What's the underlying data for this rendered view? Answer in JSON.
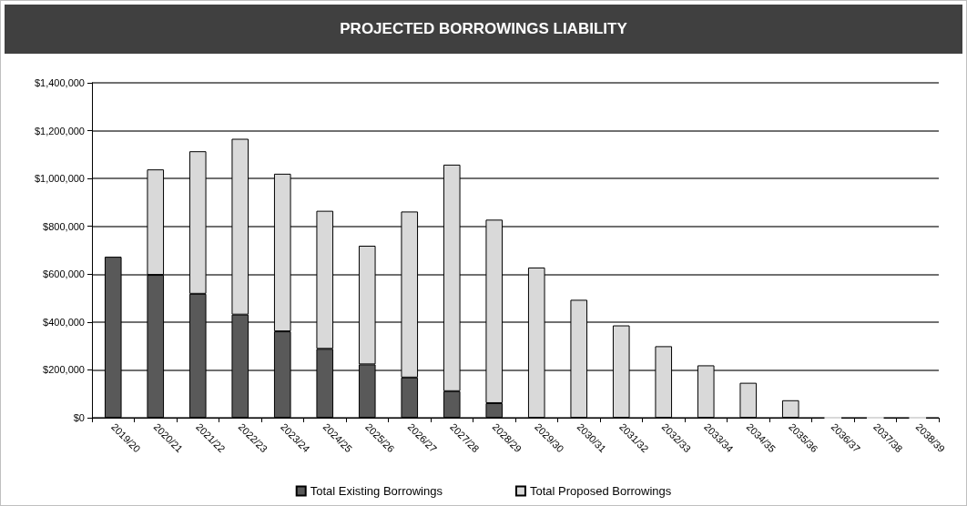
{
  "chart_data": {
    "type": "bar",
    "title": "PROJECTED BORROWINGS LIABILITY",
    "stacked": true,
    "categories": [
      "2019/20",
      "2020/21",
      "2021/22",
      "2022/23",
      "2023/24",
      "2024/25",
      "2025/26",
      "2026/27",
      "2027/28",
      "2028/29",
      "2029/30",
      "2030/31",
      "2031/32",
      "2032/33",
      "2033/34",
      "2034/35",
      "2035/36",
      "2036/37",
      "2037/38",
      "2038/39"
    ],
    "series": [
      {
        "name": "Total Existing Borrowings",
        "color": "#595959",
        "values": [
          673000,
          597000,
          518000,
          431000,
          361000,
          288000,
          223000,
          168000,
          111000,
          61000,
          null,
          null,
          null,
          null,
          null,
          null,
          null,
          null,
          null,
          null
        ]
      },
      {
        "name": "Total Proposed Borrowings",
        "color": "#d9d9d9",
        "values": [
          null,
          441000,
          596000,
          735000,
          659000,
          577000,
          496000,
          694000,
          947000,
          767000,
          628000,
          493000,
          386000,
          299000,
          219000,
          146000,
          73000,
          0,
          0,
          0
        ]
      }
    ],
    "ylim": [
      0,
      1400000
    ],
    "yticks": [
      {
        "value": 0,
        "label": "$0"
      },
      {
        "value": 200000,
        "label": "$200,000"
      },
      {
        "value": 400000,
        "label": "$400,000"
      },
      {
        "value": 600000,
        "label": "$600,000"
      },
      {
        "value": 800000,
        "label": "$800,000"
      },
      {
        "value": 1000000,
        "label": "$1,000,000"
      },
      {
        "value": 1200000,
        "label": "$1,200,000"
      },
      {
        "value": 1400000,
        "label": "$1,400,000"
      }
    ],
    "grid": "y",
    "legend": "bottom"
  }
}
